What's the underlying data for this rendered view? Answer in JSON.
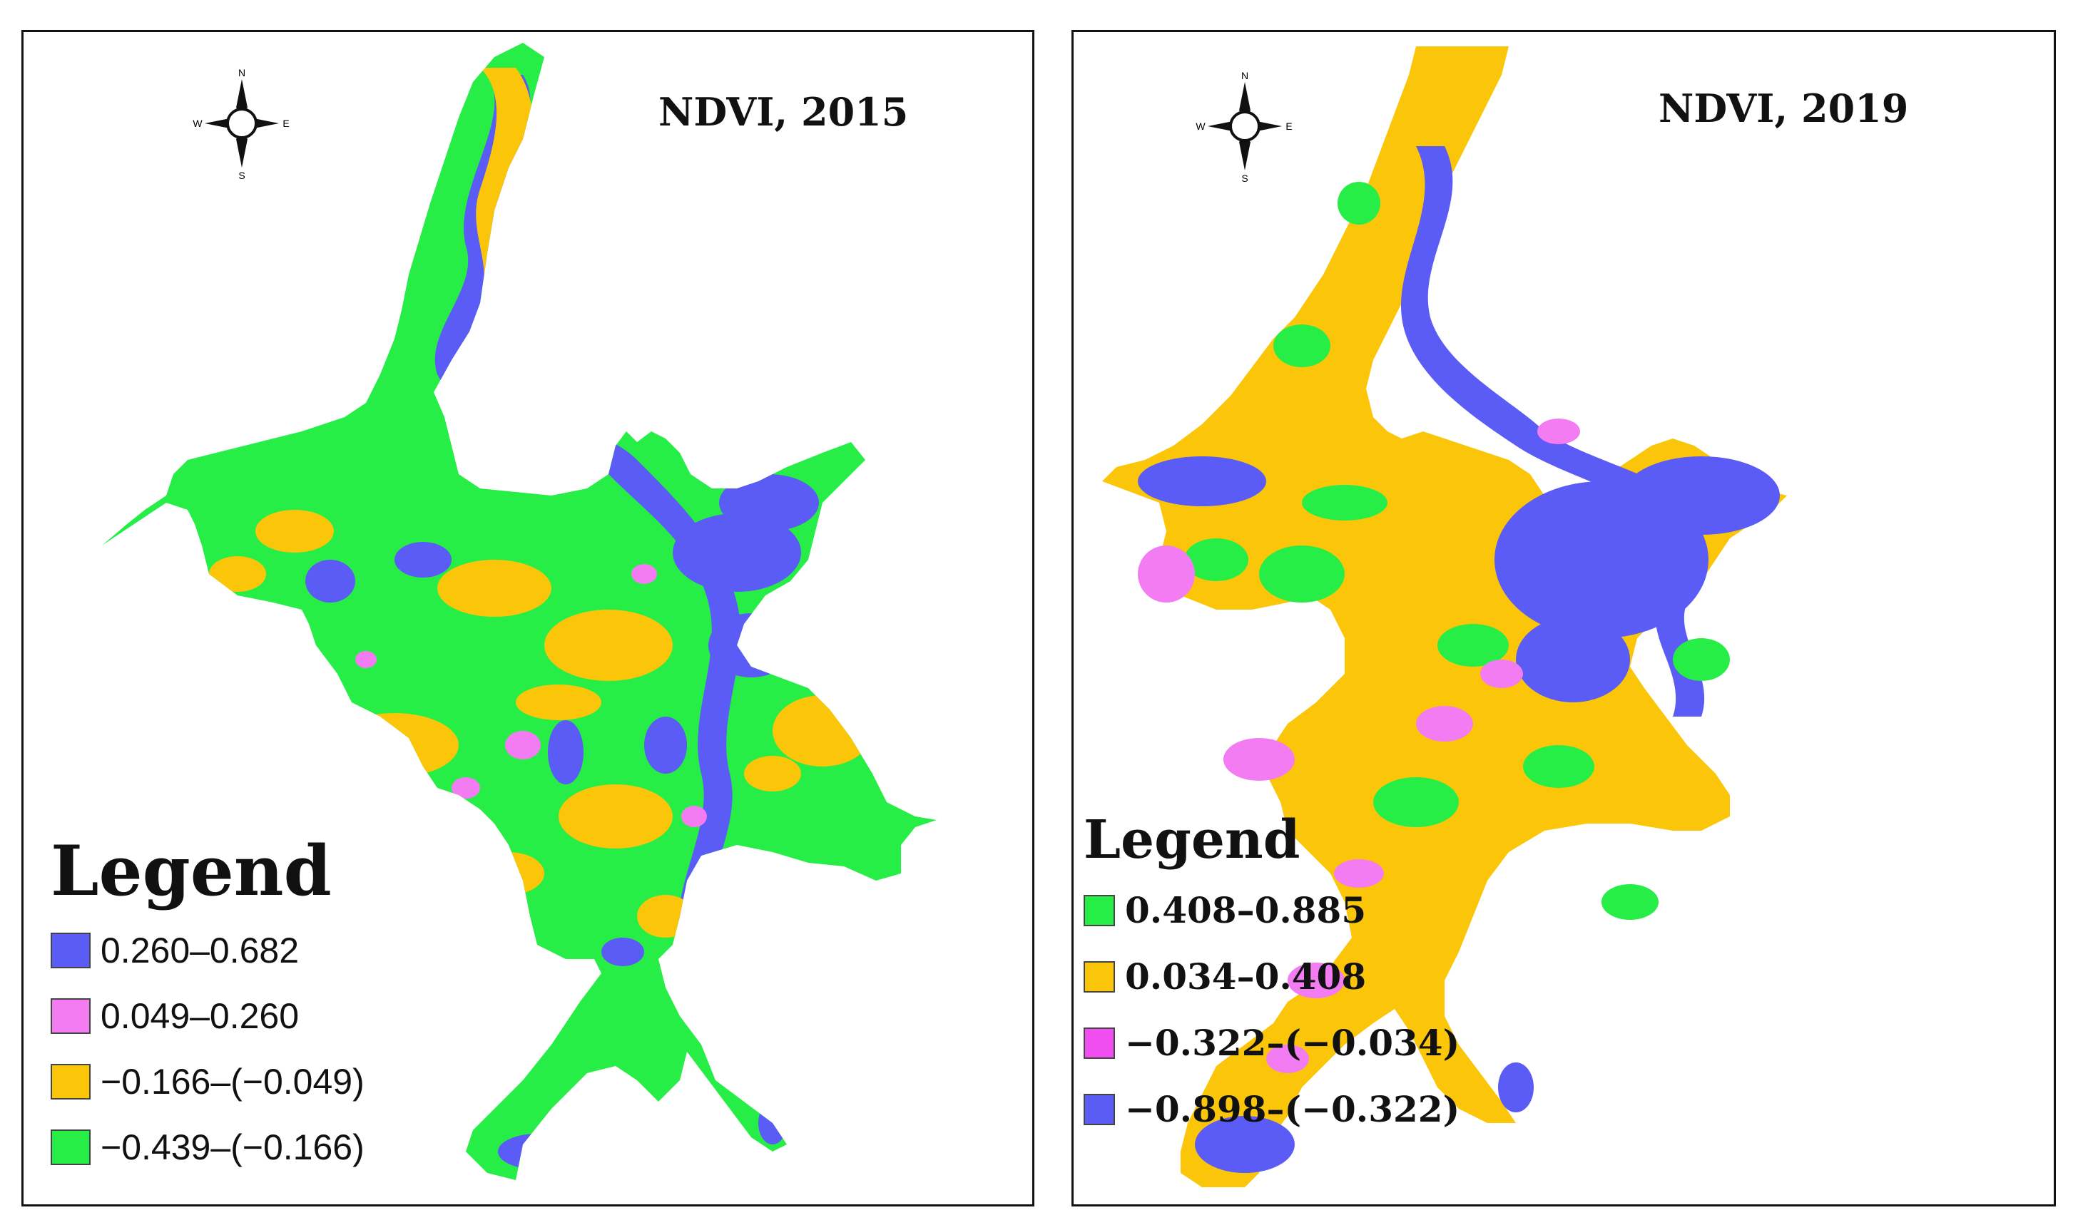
{
  "maps": [
    {
      "title": "NDVI, 2015",
      "compass": {
        "n": "N",
        "s": "S",
        "e": "E",
        "w": "W"
      },
      "legend": {
        "title": "Legend",
        "items": [
          {
            "label": "0.260–0.682",
            "color": "#5b5bf5"
          },
          {
            "label": "0.049–0.260",
            "color": "#f47cf2"
          },
          {
            "label": "−0.166–(−0.049)",
            "color": "#fbc60a"
          },
          {
            "label": "−0.439–(−0.166)",
            "color": "#27ee46"
          }
        ]
      }
    },
    {
      "title": "NDVI, 2019",
      "compass": {
        "n": "N",
        "s": "S",
        "e": "E",
        "w": "W"
      },
      "legend": {
        "title": "Legend",
        "items": [
          {
            "label": "0.408–0.885",
            "color": "#27ee46"
          },
          {
            "label": "0.034–0.408",
            "color": "#fbc60a"
          },
          {
            "label": "−0.322–(−0.034)",
            "color": "#f04ef0"
          },
          {
            "label": "−0.898–(−0.322)",
            "color": "#5b5bf5"
          }
        ]
      }
    }
  ]
}
